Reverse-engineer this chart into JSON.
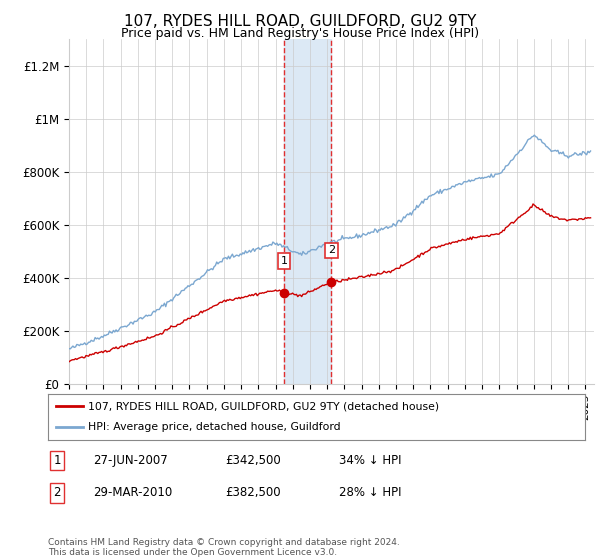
{
  "title": "107, RYDES HILL ROAD, GUILDFORD, GU2 9TY",
  "subtitle": "Price paid vs. HM Land Registry's House Price Index (HPI)",
  "xlim_start": 1995.0,
  "xlim_end": 2025.5,
  "ylim": [
    0,
    1300000
  ],
  "yticks": [
    0,
    200000,
    400000,
    600000,
    800000,
    1000000,
    1200000
  ],
  "ytick_labels": [
    "£0",
    "£200K",
    "£400K",
    "£600K",
    "£800K",
    "£1M",
    "£1.2M"
  ],
  "sale1_date": 2007.49,
  "sale1_price": 342500,
  "sale2_date": 2010.24,
  "sale2_price": 382500,
  "highlight_color": "#dce9f5",
  "vline_color": "#e03030",
  "legend_label_red": "107, RYDES HILL ROAD, GUILDFORD, GU2 9TY (detached house)",
  "legend_label_blue": "HPI: Average price, detached house, Guildford",
  "red_line_color": "#cc0000",
  "blue_line_color": "#7ba7d0",
  "background_color": "#ffffff",
  "grid_color": "#cccccc",
  "footer": "Contains HM Land Registry data © Crown copyright and database right 2024.\nThis data is licensed under the Open Government Licence v3.0."
}
